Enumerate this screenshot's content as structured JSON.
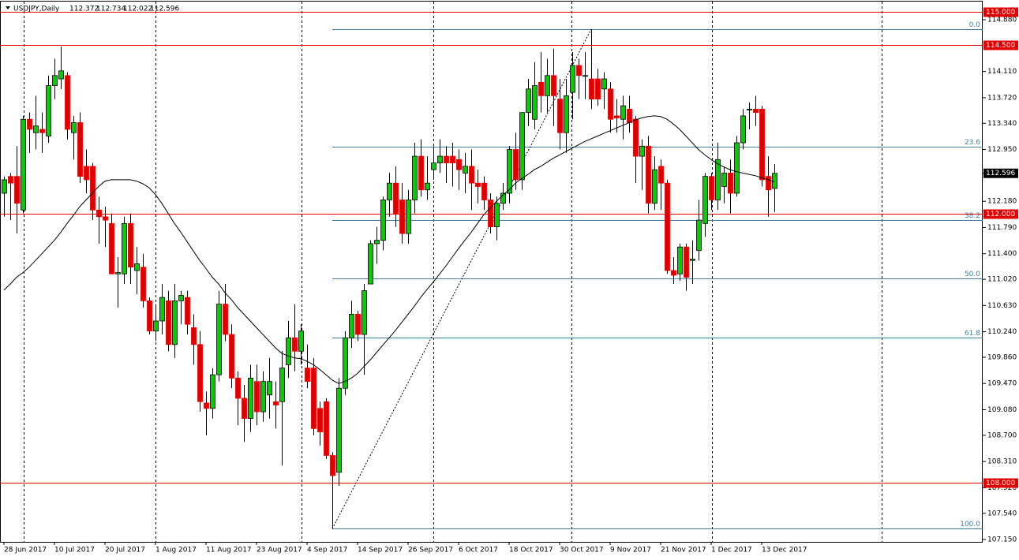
{
  "chart_data": {
    "type": "candlestick",
    "title": "USDJPY,Daily",
    "up_color": "#00d000",
    "down_color": "#e00000",
    "categories": [
      "28 Jun 2017",
      null,
      null,
      null,
      null,
      null,
      null,
      null,
      "10 Jul 2017",
      null,
      null,
      null,
      null,
      null,
      null,
      null,
      "20 Jul 2017",
      null,
      null,
      null,
      null,
      null,
      null,
      null,
      "1 Aug 2017",
      null,
      null,
      null,
      null,
      null,
      null,
      null,
      "11 Aug 2017",
      null,
      null,
      null,
      null,
      null,
      null,
      null,
      "23 Aug 2017",
      null,
      null,
      null,
      null,
      null,
      null,
      null,
      "4 Sep 2017",
      null,
      null,
      null,
      null,
      null,
      null,
      null,
      "14 Sep 2017",
      null,
      null,
      null,
      null,
      null,
      null,
      null,
      "26 Sep 2017",
      null,
      null,
      null,
      null,
      null,
      null,
      null,
      "6 Oct 2017",
      null,
      null,
      null,
      null,
      null,
      null,
      null,
      "18 Oct 2017",
      null,
      null,
      null,
      null,
      null,
      null,
      null,
      "30 Oct 2017",
      null,
      null,
      null,
      null,
      null,
      null,
      null,
      "9 Nov 2017",
      null,
      null,
      null,
      null,
      null,
      null,
      null,
      "21 Nov 2017",
      null,
      null,
      null,
      null,
      null,
      null,
      null,
      "1 Dec 2017",
      null,
      null,
      null,
      null,
      null,
      null,
      null,
      "13 Dec 2017",
      null,
      null
    ],
    "open": [
      112.3,
      112.55,
      112.55,
      112.05,
      113.4,
      113.2,
      113.25,
      113.15,
      113.9,
      114.0,
      114.05,
      113.2,
      113.35,
      112.7,
      112.7,
      112.05,
      111.95,
      111.85,
      111.1,
      111.1,
      111.85,
      111.15,
      111.2,
      110.7,
      110.25,
      110.4,
      110.7,
      110.05,
      110.7,
      110.75,
      110.3,
      110.05,
      109.18,
      109.1,
      109.6,
      110.65,
      110.2,
      109.55,
      109.25,
      108.95,
      109.5,
      109.05,
      109.3,
      109.2,
      109.2,
      109.75,
      110.15,
      109.95,
      109.7,
      109.7,
      109.1,
      109.2,
      108.4,
      108.15,
      109.4,
      110.15,
      110.5,
      110.2,
      110.95,
      111.55,
      111.6,
      112.2,
      112.45,
      112.2,
      111.7,
      112.2,
      112.85,
      112.35,
      112.65,
      112.75,
      112.85,
      112.85,
      112.8,
      112.6,
      112.7,
      112.45,
      112.45,
      112.2,
      111.8,
      112.15,
      112.3,
      112.95,
      112.5,
      113.5,
      113.4,
      113.95,
      113.75,
      114.05,
      113.7,
      113.2,
      113.8,
      114.2,
      114.05,
      114.0,
      114.0,
      113.85,
      113.85,
      113.45,
      113.4,
      113.55,
      113.4,
      112.85,
      113.0,
      112.15,
      112.7,
      112.45,
      111.15,
      111.1,
      111.5,
      111.3,
      111.45,
      111.85,
      112.55,
      112.2,
      112.4,
      112.6,
      112.3,
      113.05,
      113.55,
      113.55,
      113.55,
      112.55,
      112.372
    ],
    "high": [
      112.55,
      112.6,
      113.0,
      113.45,
      113.5,
      113.75,
      113.5,
      114.05,
      114.3,
      114.48,
      114.1,
      113.45,
      113.5,
      112.95,
      112.75,
      112.25,
      112.1,
      112.0,
      111.35,
      111.95,
      112.0,
      111.5,
      111.4,
      110.75,
      110.65,
      110.95,
      110.85,
      110.95,
      110.85,
      110.85,
      110.5,
      110.25,
      109.35,
      109.7,
      110.85,
      110.95,
      110.35,
      109.65,
      109.45,
      109.75,
      109.75,
      109.65,
      109.85,
      109.5,
      109.95,
      110.4,
      110.65,
      110.35,
      110.05,
      109.85,
      109.2,
      109.25,
      108.45,
      109.55,
      110.25,
      110.7,
      110.55,
      110.95,
      111.6,
      111.8,
      112.25,
      112.6,
      112.7,
      112.45,
      112.35,
      113.05,
      113.1,
      112.85,
      113.0,
      113.1,
      113.0,
      113.05,
      112.95,
      112.9,
      112.95,
      112.65,
      112.55,
      112.3,
      112.25,
      112.45,
      113.0,
      113.2,
      113.5,
      114.0,
      114.25,
      114.4,
      114.3,
      114.45,
      114.0,
      114.0,
      114.4,
      114.3,
      114.4,
      114.74,
      114.15,
      114.1,
      113.95,
      113.7,
      113.75,
      113.75,
      113.45,
      113.1,
      113.15,
      112.85,
      112.8,
      112.5,
      111.35,
      111.55,
      111.55,
      111.6,
      112.2,
      112.6,
      112.6,
      113.05,
      112.7,
      112.8,
      113.15,
      113.55,
      113.65,
      113.75,
      113.6,
      112.85,
      112.734
    ],
    "low": [
      111.95,
      111.9,
      111.7,
      112.0,
      112.9,
      112.95,
      112.9,
      113.05,
      113.7,
      113.85,
      113.1,
      112.8,
      112.45,
      112.3,
      111.9,
      111.55,
      111.5,
      111.1,
      110.6,
      110.95,
      110.95,
      110.8,
      110.6,
      110.2,
      110.1,
      110.2,
      109.95,
      109.85,
      110.35,
      110.2,
      109.75,
      109.05,
      108.7,
      108.95,
      109.5,
      110.1,
      109.4,
      108.85,
      108.6,
      108.75,
      108.85,
      108.9,
      108.95,
      108.8,
      108.25,
      109.55,
      109.65,
      109.75,
      109.4,
      108.7,
      108.55,
      108.35,
      107.31,
      107.95,
      109.3,
      110.0,
      110.1,
      109.6,
      110.95,
      111.25,
      111.45,
      111.95,
      111.8,
      111.55,
      111.55,
      112.0,
      112.25,
      112.2,
      112.5,
      112.6,
      112.45,
      112.4,
      112.35,
      112.3,
      112.05,
      112.15,
      112.05,
      111.7,
      111.6,
      112.05,
      112.15,
      112.35,
      112.35,
      113.3,
      113.25,
      113.5,
      113.5,
      113.3,
      112.95,
      112.9,
      113.4,
      113.7,
      113.7,
      113.55,
      113.6,
      113.55,
      113.2,
      113.2,
      113.1,
      113.2,
      112.45,
      112.35,
      112.0,
      112.05,
      112.05,
      111.1,
      110.95,
      111.0,
      110.85,
      110.95,
      111.3,
      111.65,
      112.05,
      112.05,
      112.15,
      112.0,
      112.25,
      112.95,
      113.25,
      113.3,
      112.4,
      111.95,
      112.022
    ],
    "close": [
      112.5,
      112.45,
      112.15,
      113.4,
      113.25,
      113.3,
      113.2,
      113.9,
      114.05,
      114.12,
      113.25,
      113.35,
      112.55,
      112.5,
      112.05,
      111.95,
      111.9,
      111.1,
      111.12,
      111.85,
      111.2,
      111.25,
      110.7,
      110.25,
      110.4,
      110.75,
      110.05,
      110.7,
      110.78,
      110.35,
      110.05,
      109.2,
      109.1,
      109.6,
      110.65,
      110.2,
      109.55,
      109.25,
      108.95,
      109.55,
      109.05,
      109.5,
      109.5,
      109.15,
      109.7,
      110.15,
      109.95,
      110.25,
      109.5,
      108.8,
      108.75,
      108.4,
      108.1,
      109.4,
      110.15,
      110.5,
      110.2,
      110.85,
      111.55,
      111.6,
      112.2,
      112.45,
      112.0,
      111.7,
      112.2,
      112.85,
      112.35,
      112.45,
      112.75,
      112.85,
      112.75,
      112.75,
      112.65,
      112.7,
      112.45,
      112.4,
      112.2,
      111.8,
      112.15,
      112.3,
      112.95,
      112.5,
      113.5,
      113.85,
      113.9,
      113.75,
      114.05,
      113.75,
      113.2,
      113.75,
      114.2,
      114.05,
      114.05,
      113.7,
      113.7,
      114.0,
      113.4,
      113.42,
      113.6,
      113.35,
      112.85,
      113.0,
      112.15,
      112.65,
      112.45,
      111.15,
      111.08,
      111.5,
      111.05,
      111.32,
      111.9,
      112.55,
      112.2,
      112.8,
      112.6,
      112.3,
      113.05,
      113.45,
      113.55,
      113.5,
      112.5,
      112.35,
      112.596
    ],
    "ma": {
      "color": "#000000",
      "values": [
        110.86,
        110.95,
        111.05,
        111.12,
        111.2,
        111.3,
        111.4,
        111.5,
        111.6,
        111.72,
        111.85,
        111.97,
        112.1,
        112.2,
        112.3,
        112.4,
        112.48,
        112.5,
        112.5,
        112.5,
        112.5,
        112.48,
        112.44,
        112.38,
        112.28,
        112.15,
        112.0,
        111.85,
        111.72,
        111.58,
        111.44,
        111.3,
        111.18,
        111.05,
        110.95,
        110.82,
        110.72,
        110.6,
        110.5,
        110.4,
        110.3,
        110.2,
        110.1,
        110.0,
        109.92,
        109.88,
        109.85,
        109.84,
        109.8,
        109.75,
        109.68,
        109.6,
        109.52,
        109.47,
        109.5,
        109.55,
        109.62,
        109.72,
        109.82,
        109.93,
        110.04,
        110.15,
        110.26,
        110.38,
        110.5,
        110.62,
        110.75,
        110.87,
        110.98,
        111.1,
        111.22,
        111.35,
        111.48,
        111.6,
        111.72,
        111.85,
        111.98,
        112.08,
        112.18,
        112.27,
        112.35,
        112.45,
        112.52,
        112.58,
        112.65,
        112.7,
        112.76,
        112.82,
        112.87,
        112.92,
        112.97,
        113.02,
        113.07,
        113.11,
        113.15,
        113.19,
        113.23,
        113.27,
        113.31,
        113.35,
        113.39,
        113.42,
        113.44,
        113.45,
        113.44,
        113.4,
        113.33,
        113.25,
        113.15,
        113.05,
        112.95,
        112.87,
        112.8,
        112.74,
        112.69,
        112.65,
        112.62,
        112.6,
        112.58,
        112.56,
        112.53,
        112.5,
        112.47
      ]
    },
    "ylim": [
      107.115,
      115.15
    ],
    "yticks": [
      {
        "value": 114.88,
        "label": "114.880"
      },
      {
        "value": 114.11,
        "label": "114.110"
      },
      {
        "value": 113.72,
        "label": "113.720"
      },
      {
        "value": 113.34,
        "label": "113.340"
      },
      {
        "value": 112.95,
        "label": "112.950"
      },
      {
        "value": 112.18,
        "label": "112.180"
      },
      {
        "value": 111.79,
        "label": "111.790"
      },
      {
        "value": 111.4,
        "label": "111.400"
      },
      {
        "value": 111.02,
        "label": "111.020"
      },
      {
        "value": 110.63,
        "label": "110.630"
      },
      {
        "value": 110.24,
        "label": "110.240"
      },
      {
        "value": 109.86,
        "label": "109.860"
      },
      {
        "value": 109.47,
        "label": "109.470"
      },
      {
        "value": 109.08,
        "label": "109.080"
      },
      {
        "value": 108.7,
        "label": "108.700"
      },
      {
        "value": 108.31,
        "label": "108.310"
      },
      {
        "value": 107.92,
        "label": "107.920"
      },
      {
        "value": 107.54,
        "label": "107.540"
      },
      {
        "value": 107.15,
        "label": "107.150"
      }
    ],
    "hlines": {
      "color": "#e00000",
      "lines": [
        {
          "value": 115.0,
          "label": "115.000"
        },
        {
          "value": 114.5,
          "label": "114.500"
        },
        {
          "value": 112.0,
          "label": "112.000"
        },
        {
          "value": 108.0,
          "label": "108.000"
        }
      ]
    },
    "last_price": {
      "value": 112.596,
      "label": "112.596"
    },
    "fib": {
      "color": "#3f7fa6",
      "levels": [
        {
          "value": 114.74,
          "label": "0.0"
        },
        {
          "value": 112.99,
          "label": "23.6"
        },
        {
          "value": 111.9,
          "label": "38.2"
        },
        {
          "value": 111.03,
          "label": "50.0"
        },
        {
          "value": 110.15,
          "label": "61.8"
        },
        {
          "value": 107.31,
          "label": "100.0"
        }
      ]
    }
  }
}
